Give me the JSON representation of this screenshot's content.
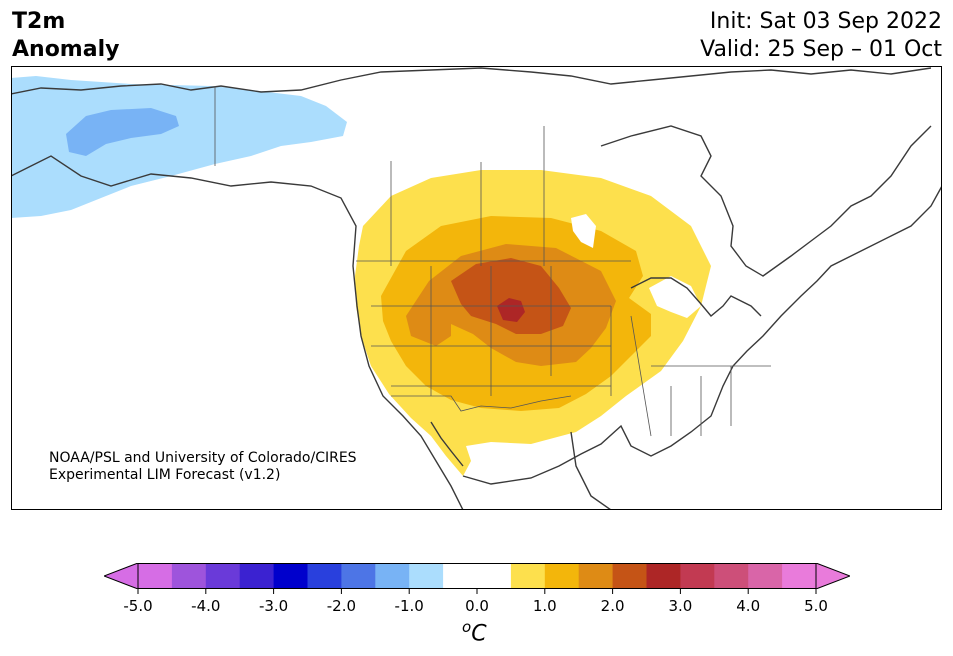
{
  "header": {
    "title_line1": "T2m",
    "title_line2": "Anomaly",
    "init": "Init: Sat 03 Sep 2022",
    "valid": "Valid: 25 Sep – 01 Oct"
  },
  "credit": {
    "line1": "NOAA/PSL and University of Colorado/CIRES",
    "line2": "Experimental LIM Forecast (v1.2)"
  },
  "colorbar": {
    "unit_base": "C",
    "unit_sup": "o",
    "ticks": [
      "-5.0",
      "-4.0",
      "-3.0",
      "-2.0",
      "-1.0",
      "0.0",
      "1.0",
      "2.0",
      "3.0",
      "4.0",
      "5.0"
    ],
    "low_extend_color": "#d66de5",
    "high_extend_color": "#e97bdb",
    "colors": [
      "#d66de5",
      "#9e54dc",
      "#6a3ad9",
      "#3b22d1",
      "#0000cc",
      "#2940dd",
      "#4d75e6",
      "#78b3f5",
      "#abddfd",
      "#ffffff",
      "#ffffff",
      "#fde04d",
      "#f3b60b",
      "#de8b15",
      "#c55416",
      "#ad2626",
      "#c23a52",
      "#cd4f79",
      "#d965a8",
      "#e97bdb"
    ]
  },
  "map": {
    "region": "North America",
    "anomaly_colors": {
      "light_blue": "#abddfd",
      "mid_blue": "#78b3f5",
      "yellow": "#fde04d",
      "gold": "#f3b60b",
      "orange": "#de8b15",
      "dark_orange": "#c55416",
      "red": "#ad2626"
    }
  }
}
